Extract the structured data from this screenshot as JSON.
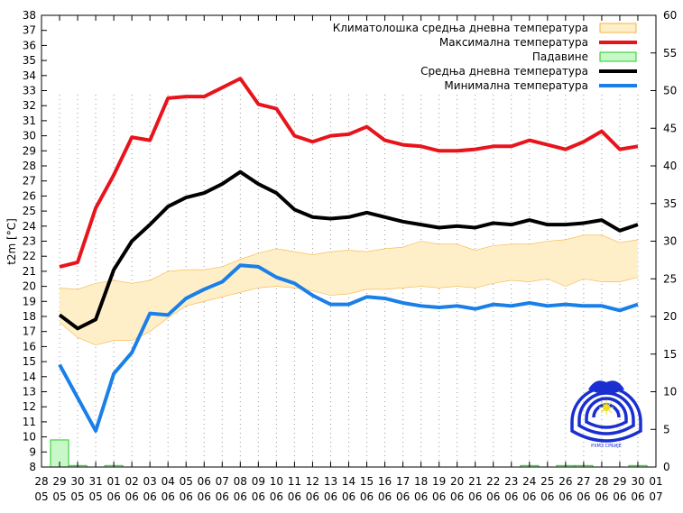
{
  "chart_data": {
    "type": "line",
    "ylabel": "t2m [°C]",
    "ylim": [
      8,
      38
    ],
    "y2lim": [
      0,
      60
    ],
    "yticks": [
      8,
      9,
      10,
      11,
      12,
      13,
      14,
      15,
      16,
      17,
      18,
      19,
      20,
      21,
      22,
      23,
      24,
      25,
      26,
      27,
      28,
      29,
      30,
      31,
      32,
      33,
      34,
      35,
      36,
      37,
      38
    ],
    "y2ticks": [
      0,
      5,
      10,
      15,
      20,
      25,
      30,
      35,
      40,
      45,
      50,
      55,
      60
    ],
    "xticks": [
      [
        "28",
        "05"
      ],
      [
        "29",
        "05"
      ],
      [
        "30",
        "05"
      ],
      [
        "31",
        "05"
      ],
      [
        "01",
        "06"
      ],
      [
        "02",
        "06"
      ],
      [
        "03",
        "06"
      ],
      [
        "04",
        "06"
      ],
      [
        "05",
        "06"
      ],
      [
        "06",
        "06"
      ],
      [
        "07",
        "06"
      ],
      [
        "08",
        "06"
      ],
      [
        "09",
        "06"
      ],
      [
        "10",
        "06"
      ],
      [
        "11",
        "06"
      ],
      [
        "12",
        "06"
      ],
      [
        "13",
        "06"
      ],
      [
        "14",
        "06"
      ],
      [
        "15",
        "06"
      ],
      [
        "16",
        "06"
      ],
      [
        "17",
        "06"
      ],
      [
        "18",
        "06"
      ],
      [
        "19",
        "06"
      ],
      [
        "20",
        "06"
      ],
      [
        "21",
        "06"
      ],
      [
        "22",
        "06"
      ],
      [
        "23",
        "06"
      ],
      [
        "24",
        "06"
      ],
      [
        "25",
        "06"
      ],
      [
        "26",
        "06"
      ],
      [
        "27",
        "06"
      ],
      [
        "28",
        "06"
      ],
      [
        "29",
        "06"
      ],
      [
        "30",
        "06"
      ],
      [
        "01",
        "07"
      ]
    ],
    "x_dates": [
      "29.05",
      "30.05",
      "31.05",
      "01.06",
      "02.06",
      "03.06",
      "04.06",
      "05.06",
      "06.06",
      "07.06",
      "08.06",
      "09.06",
      "10.06",
      "11.06",
      "12.06",
      "13.06",
      "14.06",
      "15.06",
      "16.06",
      "17.06",
      "18.06",
      "19.06",
      "20.06",
      "21.06",
      "22.06",
      "23.06",
      "24.06",
      "25.06",
      "26.06",
      "27.06",
      "28.06",
      "29.06",
      "30.06"
    ],
    "legend_position": "top-right",
    "grid": "vertical dotted",
    "series": [
      {
        "name": "Климатолошка средња дневна температура",
        "kind": "band",
        "color": "#ffefc8",
        "edge": "#f5b342",
        "upper": [
          19.9,
          19.8,
          20.2,
          20.4,
          20.2,
          20.4,
          21.0,
          21.1,
          21.1,
          21.3,
          21.8,
          22.2,
          22.5,
          22.3,
          22.1,
          22.3,
          22.4,
          22.3,
          22.5,
          22.6,
          23.0,
          22.8,
          22.8,
          22.4,
          22.7,
          22.8,
          22.8,
          23.0,
          23.1,
          23.4,
          23.4,
          22.9,
          23.1
        ],
        "lower": [
          17.6,
          16.6,
          16.1,
          16.4,
          16.4,
          17.0,
          17.9,
          18.7,
          19.0,
          19.3,
          19.6,
          19.9,
          20.0,
          19.9,
          19.7,
          19.4,
          19.5,
          19.8,
          19.8,
          19.9,
          20.0,
          19.9,
          20.0,
          19.9,
          20.2,
          20.4,
          20.3,
          20.5,
          20.0,
          20.5,
          20.3,
          20.3,
          20.6
        ]
      },
      {
        "name": "Максимална температура",
        "kind": "line",
        "color": "#e8141c",
        "values": [
          21.3,
          21.6,
          25.2,
          27.4,
          29.9,
          29.7,
          32.5,
          32.6,
          32.6,
          33.2,
          33.8,
          32.1,
          31.8,
          30.0,
          29.6,
          30.0,
          30.1,
          30.6,
          29.7,
          29.4,
          29.3,
          29.0,
          29.0,
          29.1,
          29.3,
          29.3,
          29.7,
          29.4,
          29.1,
          29.6,
          30.3,
          29.1,
          29.3
        ]
      },
      {
        "name": "Падавине",
        "kind": "bar",
        "axis": "right",
        "color": "#c8f7c8",
        "edge": "#22cc22",
        "values": [
          3.6,
          0.2,
          0,
          0.2,
          0,
          0,
          0,
          0,
          0,
          0,
          0,
          0,
          0,
          0,
          0,
          0,
          0,
          0,
          0,
          0,
          0,
          0,
          0,
          0,
          0,
          0,
          0.2,
          0,
          0.2,
          0.2,
          0,
          0,
          0.2
        ]
      },
      {
        "name": "Средња дневна температура",
        "kind": "line",
        "color": "#000000",
        "values": [
          18.1,
          17.2,
          17.8,
          21.1,
          23.0,
          24.1,
          25.3,
          25.9,
          26.2,
          26.8,
          27.6,
          26.8,
          26.2,
          25.1,
          24.6,
          24.5,
          24.6,
          24.9,
          24.6,
          24.3,
          24.1,
          23.9,
          24.0,
          23.9,
          24.2,
          24.1,
          24.4,
          24.1,
          24.1,
          24.2,
          24.4,
          23.7,
          24.1
        ]
      },
      {
        "name": "Минимална температура",
        "kind": "line",
        "color": "#1a7fe8",
        "values": [
          14.8,
          12.6,
          10.4,
          14.2,
          15.6,
          18.2,
          18.1,
          19.2,
          19.8,
          20.3,
          21.4,
          21.3,
          20.6,
          20.2,
          19.4,
          18.8,
          18.8,
          19.3,
          19.2,
          18.9,
          18.7,
          18.6,
          18.7,
          18.5,
          18.8,
          18.7,
          18.9,
          18.7,
          18.8,
          18.7,
          18.7,
          18.4,
          18.8
        ]
      }
    ],
    "logo": {
      "name": "RHMZ Srbije emblem",
      "color": "#1a2fd0",
      "text": "РХМЗ СРБИЈЕ"
    }
  }
}
